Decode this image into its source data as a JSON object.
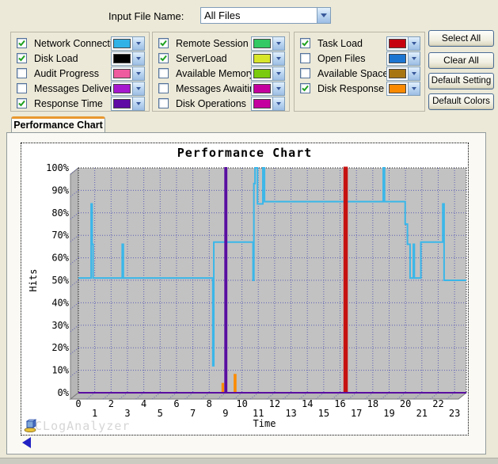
{
  "header": {
    "input_file_label": "Input File Name:",
    "input_file_value": "All Files"
  },
  "series_panels": {
    "groups": [
      {
        "items": [
          {
            "label": "Network Connections",
            "checked": true,
            "color": "#31B2E7"
          },
          {
            "label": "Disk Load",
            "checked": true,
            "color": "#000000"
          },
          {
            "label": "Audit Progress",
            "checked": false,
            "color": "#EF5B9F"
          },
          {
            "label": "Messages Delivered",
            "checked": false,
            "color": "#A518CF"
          },
          {
            "label": "Response Time",
            "checked": true,
            "color": "#5F0AA5"
          }
        ]
      },
      {
        "items": [
          {
            "label": "Remote Session",
            "checked": true,
            "color": "#33C964"
          },
          {
            "label": "ServerLoad",
            "checked": true,
            "color": "#D8E62A"
          },
          {
            "label": "Available Memory",
            "checked": false,
            "color": "#7ACB0F"
          },
          {
            "label": "Messages Awaiting",
            "checked": false,
            "color": "#C4009E"
          },
          {
            "label": "Disk Operations",
            "checked": false,
            "color": "#C4009E"
          }
        ]
      },
      {
        "items": [
          {
            "label": "Task Load",
            "checked": true,
            "color": "#C60211"
          },
          {
            "label": "Open Files",
            "checked": false,
            "color": "#1B75D1"
          },
          {
            "label": "Available Space",
            "checked": false,
            "color": "#A87513"
          },
          {
            "label": "Disk Response Time",
            "checked": true,
            "color": "#FC8A00"
          }
        ]
      }
    ]
  },
  "actions": {
    "select_all": "Select All",
    "clear_all": "Clear All",
    "default_setting": "Default Setting",
    "default_colors": "Default Colors"
  },
  "tab": {
    "label": "Performance Chart"
  },
  "watermark": {
    "text": "FCLogAnalyzer"
  },
  "chart_data": {
    "type": "line",
    "title": "Performance Chart",
    "xlabel": "Time",
    "ylabel": "Hits",
    "xlim": [
      0,
      23.72
    ],
    "ylim": [
      0,
      100
    ],
    "x_ticks": [
      0,
      1,
      2,
      3,
      4,
      5,
      6,
      7,
      8,
      9,
      10,
      11,
      12,
      13,
      14,
      15,
      16,
      17,
      18,
      19,
      20,
      21,
      22,
      23
    ],
    "y_ticks": [
      0,
      10,
      20,
      30,
      40,
      50,
      60,
      70,
      80,
      90,
      100
    ],
    "y_tick_suffix": "%",
    "grid": true,
    "legend_position": "none",
    "plot_background": "#C2C2C2",
    "grid_color": "#5E5EB6",
    "wall_color": "#B6B6B6",
    "series": [
      {
        "name": "Disk Load",
        "color": "#000000",
        "width": 1,
        "points": [
          [
            0,
            0
          ],
          [
            23.72,
            0
          ]
        ]
      },
      {
        "name": "Network Connections",
        "color": "#3AB7E9",
        "width": 2,
        "points": [
          [
            0,
            51
          ],
          [
            0.78,
            51
          ],
          [
            0.78,
            84
          ],
          [
            0.84,
            84
          ],
          [
            0.84,
            66
          ],
          [
            0.9,
            66
          ],
          [
            0.9,
            51
          ],
          [
            2.68,
            51
          ],
          [
            2.68,
            66
          ],
          [
            2.75,
            66
          ],
          [
            2.75,
            51
          ],
          [
            8.22,
            51
          ],
          [
            8.22,
            12
          ],
          [
            8.28,
            12
          ],
          [
            8.28,
            67
          ],
          [
            10.68,
            67
          ],
          [
            10.68,
            50
          ],
          [
            10.73,
            50
          ],
          [
            10.73,
            93
          ],
          [
            10.8,
            93
          ],
          [
            10.8,
            100
          ],
          [
            10.95,
            100
          ],
          [
            10.95,
            84
          ],
          [
            11.28,
            84
          ],
          [
            11.28,
            100
          ],
          [
            11.38,
            100
          ],
          [
            11.38,
            85
          ],
          [
            18.64,
            85
          ],
          [
            18.64,
            100
          ],
          [
            18.72,
            100
          ],
          [
            18.72,
            85
          ],
          [
            19.98,
            85
          ],
          [
            19.98,
            75
          ],
          [
            20.12,
            75
          ],
          [
            20.12,
            66
          ],
          [
            20.28,
            66
          ],
          [
            20.28,
            51
          ],
          [
            20.48,
            51
          ],
          [
            20.48,
            66
          ],
          [
            20.54,
            66
          ],
          [
            20.54,
            51
          ],
          [
            20.94,
            51
          ],
          [
            20.94,
            67
          ],
          [
            22.28,
            67
          ],
          [
            22.28,
            84
          ],
          [
            22.36,
            84
          ],
          [
            22.36,
            50
          ],
          [
            23.72,
            50
          ]
        ]
      },
      {
        "name": "Disk Response Time",
        "color": "#FB8C00",
        "width": 2,
        "points": [
          [
            8.8,
            0
          ],
          [
            8.8,
            4
          ],
          [
            8.86,
            4
          ],
          [
            8.86,
            0
          ],
          [
            9.54,
            0
          ],
          [
            9.54,
            8
          ],
          [
            9.62,
            8
          ],
          [
            9.62,
            0
          ]
        ]
      },
      {
        "name": "Task Load",
        "color": "#C61111",
        "width": 3,
        "points": [
          [
            16.28,
            0
          ],
          [
            16.28,
            100
          ],
          [
            16.4,
            100
          ],
          [
            16.4,
            0
          ]
        ]
      },
      {
        "name": "Response Time",
        "color": "#5A0FA0",
        "width": 2,
        "points": [
          [
            0,
            0
          ],
          [
            8.97,
            0
          ],
          [
            8.97,
            100
          ],
          [
            9.06,
            100
          ],
          [
            9.06,
            0
          ],
          [
            23.72,
            0
          ]
        ]
      }
    ]
  }
}
